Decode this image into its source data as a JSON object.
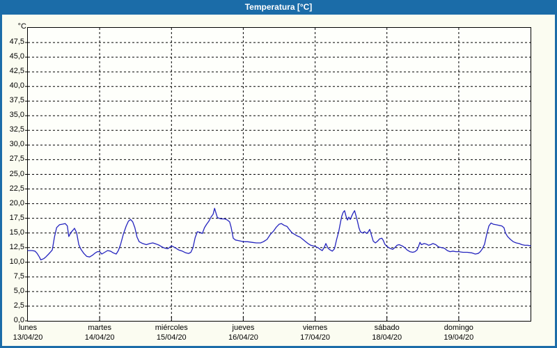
{
  "title": "Temperatura [°C]",
  "colors": {
    "frame": "#1b6ca8",
    "title_text": "#ffffff",
    "background": "#fbfcf1",
    "plot_background": "#fefffb",
    "line": "#2323be",
    "grid": "#000000"
  },
  "chart_data": {
    "type": "line",
    "title": "Temperatura [°C]",
    "y_unit": "°C",
    "ylim": [
      0,
      50
    ],
    "y_tick_step": 2.5,
    "x_range_days": [
      0,
      7
    ],
    "grid": "dashed black, horizontal every 2.5 °C, vertical at day boundaries",
    "legend": "none",
    "y_ticks": [
      {
        "v": 47.5,
        "label": "47,5"
      },
      {
        "v": 45.0,
        "label": "45,0"
      },
      {
        "v": 42.5,
        "label": "42,5"
      },
      {
        "v": 40.0,
        "label": "40,0"
      },
      {
        "v": 37.5,
        "label": "37,5"
      },
      {
        "v": 35.0,
        "label": "35,0"
      },
      {
        "v": 32.5,
        "label": "32,5"
      },
      {
        "v": 30.0,
        "label": "30,0"
      },
      {
        "v": 27.5,
        "label": "27,5"
      },
      {
        "v": 25.0,
        "label": "25,0"
      },
      {
        "v": 22.5,
        "label": "22,5"
      },
      {
        "v": 20.0,
        "label": "20,0"
      },
      {
        "v": 17.5,
        "label": "17,5"
      },
      {
        "v": 15.0,
        "label": "15,0"
      },
      {
        "v": 12.5,
        "label": "12,5"
      },
      {
        "v": 10.0,
        "label": "10,0"
      },
      {
        "v": 7.5,
        "label": "7,5"
      },
      {
        "v": 5.0,
        "label": "5,0"
      },
      {
        "v": 2.5,
        "label": "2,5"
      },
      {
        "v": 0.0,
        "label": "0,0"
      }
    ],
    "x_days": [
      {
        "name": "lunes",
        "date": "13/04/20"
      },
      {
        "name": "martes",
        "date": "14/04/20"
      },
      {
        "name": "miércoles",
        "date": "15/04/20"
      },
      {
        "name": "jueves",
        "date": "16/04/20"
      },
      {
        "name": "viernes",
        "date": "17/04/20"
      },
      {
        "name": "sábado",
        "date": "18/04/20"
      },
      {
        "name": "domingo",
        "date": "19/04/20"
      }
    ],
    "series": [
      {
        "name": "Temperatura",
        "color": "#2323be",
        "points": [
          [
            0.0,
            12.0
          ],
          [
            0.06,
            12.0
          ],
          [
            0.1,
            11.9
          ],
          [
            0.13,
            11.5
          ],
          [
            0.16,
            10.9
          ],
          [
            0.18,
            10.4
          ],
          [
            0.22,
            10.6
          ],
          [
            0.25,
            10.9
          ],
          [
            0.29,
            11.4
          ],
          [
            0.32,
            11.8
          ],
          [
            0.34,
            12.1
          ],
          [
            0.37,
            14.3
          ],
          [
            0.4,
            15.9
          ],
          [
            0.44,
            16.4
          ],
          [
            0.48,
            16.5
          ],
          [
            0.52,
            16.6
          ],
          [
            0.55,
            16.2
          ],
          [
            0.57,
            14.4
          ],
          [
            0.6,
            15.1
          ],
          [
            0.63,
            15.5
          ],
          [
            0.65,
            15.8
          ],
          [
            0.68,
            15.0
          ],
          [
            0.71,
            13.0
          ],
          [
            0.74,
            12.2
          ],
          [
            0.78,
            11.5
          ],
          [
            0.82,
            11.0
          ],
          [
            0.86,
            10.9
          ],
          [
            0.9,
            11.2
          ],
          [
            0.94,
            11.6
          ],
          [
            0.97,
            11.8
          ],
          [
            1.0,
            11.8
          ],
          [
            1.03,
            11.4
          ],
          [
            1.07,
            11.7
          ],
          [
            1.11,
            12.0
          ],
          [
            1.15,
            11.9
          ],
          [
            1.19,
            11.6
          ],
          [
            1.23,
            11.4
          ],
          [
            1.26,
            12.0
          ],
          [
            1.29,
            13.0
          ],
          [
            1.33,
            14.8
          ],
          [
            1.37,
            16.2
          ],
          [
            1.4,
            17.0
          ],
          [
            1.43,
            17.3
          ],
          [
            1.46,
            16.9
          ],
          [
            1.49,
            15.9
          ],
          [
            1.52,
            14.3
          ],
          [
            1.55,
            13.5
          ],
          [
            1.6,
            13.2
          ],
          [
            1.65,
            13.0
          ],
          [
            1.7,
            13.2
          ],
          [
            1.74,
            13.3
          ],
          [
            1.79,
            13.1
          ],
          [
            1.83,
            12.9
          ],
          [
            1.87,
            12.6
          ],
          [
            1.91,
            12.4
          ],
          [
            1.95,
            12.3
          ],
          [
            2.0,
            12.8
          ],
          [
            2.05,
            12.5
          ],
          [
            2.1,
            12.1
          ],
          [
            2.15,
            11.9
          ],
          [
            2.2,
            11.6
          ],
          [
            2.24,
            11.5
          ],
          [
            2.27,
            11.7
          ],
          [
            2.3,
            12.5
          ],
          [
            2.33,
            14.2
          ],
          [
            2.36,
            15.2
          ],
          [
            2.4,
            15.1
          ],
          [
            2.43,
            14.9
          ],
          [
            2.46,
            15.9
          ],
          [
            2.49,
            16.5
          ],
          [
            2.52,
            17.0
          ],
          [
            2.55,
            17.7
          ],
          [
            2.58,
            18.2
          ],
          [
            2.6,
            19.2
          ],
          [
            2.62,
            18.4
          ],
          [
            2.64,
            17.6
          ],
          [
            2.69,
            17.4
          ],
          [
            2.74,
            17.4
          ],
          [
            2.78,
            17.2
          ],
          [
            2.81,
            16.9
          ],
          [
            2.83,
            16.0
          ],
          [
            2.86,
            14.1
          ],
          [
            2.89,
            13.8
          ],
          [
            2.93,
            13.7
          ],
          [
            2.97,
            13.6
          ],
          [
            3.0,
            13.5
          ],
          [
            3.06,
            13.5
          ],
          [
            3.12,
            13.4
          ],
          [
            3.18,
            13.3
          ],
          [
            3.24,
            13.3
          ],
          [
            3.28,
            13.5
          ],
          [
            3.33,
            13.9
          ],
          [
            3.38,
            14.8
          ],
          [
            3.42,
            15.3
          ],
          [
            3.46,
            16.0
          ],
          [
            3.5,
            16.5
          ],
          [
            3.53,
            16.6
          ],
          [
            3.57,
            16.3
          ],
          [
            3.61,
            16.1
          ],
          [
            3.64,
            15.6
          ],
          [
            3.68,
            15.0
          ],
          [
            3.71,
            14.8
          ],
          [
            3.75,
            14.5
          ],
          [
            3.79,
            14.3
          ],
          [
            3.82,
            14.0
          ],
          [
            3.86,
            13.6
          ],
          [
            3.9,
            13.2
          ],
          [
            3.94,
            12.9
          ],
          [
            3.97,
            12.8
          ],
          [
            4.0,
            12.7
          ],
          [
            4.04,
            12.5
          ],
          [
            4.07,
            12.2
          ],
          [
            4.1,
            12.0
          ],
          [
            4.13,
            12.6
          ],
          [
            4.15,
            13.2
          ],
          [
            4.18,
            12.4
          ],
          [
            4.21,
            12.1
          ],
          [
            4.24,
            11.9
          ],
          [
            4.27,
            12.3
          ],
          [
            4.3,
            13.9
          ],
          [
            4.33,
            15.3
          ],
          [
            4.35,
            16.6
          ],
          [
            4.37,
            17.8
          ],
          [
            4.39,
            18.5
          ],
          [
            4.41,
            18.8
          ],
          [
            4.43,
            17.9
          ],
          [
            4.45,
            17.2
          ],
          [
            4.47,
            17.7
          ],
          [
            4.49,
            17.3
          ],
          [
            4.51,
            17.9
          ],
          [
            4.53,
            18.4
          ],
          [
            4.55,
            18.8
          ],
          [
            4.57,
            17.9
          ],
          [
            4.59,
            17.0
          ],
          [
            4.61,
            15.9
          ],
          [
            4.63,
            15.2
          ],
          [
            4.66,
            15.0
          ],
          [
            4.69,
            15.2
          ],
          [
            4.72,
            14.9
          ],
          [
            4.74,
            15.2
          ],
          [
            4.76,
            15.6
          ],
          [
            4.79,
            14.4
          ],
          [
            4.81,
            13.6
          ],
          [
            4.84,
            13.3
          ],
          [
            4.87,
            13.6
          ],
          [
            4.9,
            14.0
          ],
          [
            4.93,
            14.1
          ],
          [
            4.95,
            13.7
          ],
          [
            4.97,
            13.1
          ],
          [
            5.0,
            12.7
          ],
          [
            5.04,
            12.4
          ],
          [
            5.08,
            12.2
          ],
          [
            5.11,
            12.5
          ],
          [
            5.14,
            12.9
          ],
          [
            5.17,
            13.0
          ],
          [
            5.21,
            12.8
          ],
          [
            5.25,
            12.5
          ],
          [
            5.28,
            12.1
          ],
          [
            5.32,
            11.8
          ],
          [
            5.36,
            11.7
          ],
          [
            5.39,
            11.8
          ],
          [
            5.42,
            12.1
          ],
          [
            5.44,
            12.7
          ],
          [
            5.46,
            13.4
          ],
          [
            5.48,
            13.0
          ],
          [
            5.52,
            13.2
          ],
          [
            5.55,
            13.1
          ],
          [
            5.58,
            12.9
          ],
          [
            5.61,
            13.0
          ],
          [
            5.64,
            13.2
          ],
          [
            5.68,
            13.0
          ],
          [
            5.72,
            12.6
          ],
          [
            5.76,
            12.5
          ],
          [
            5.8,
            12.4
          ],
          [
            5.84,
            12.0
          ],
          [
            5.88,
            11.8
          ],
          [
            5.92,
            11.9
          ],
          [
            5.96,
            11.8
          ],
          [
            6.0,
            11.8
          ],
          [
            6.06,
            11.7
          ],
          [
            6.12,
            11.7
          ],
          [
            6.18,
            11.6
          ],
          [
            6.23,
            11.4
          ],
          [
            6.27,
            11.5
          ],
          [
            6.3,
            11.8
          ],
          [
            6.33,
            12.3
          ],
          [
            6.36,
            13.1
          ],
          [
            6.39,
            14.8
          ],
          [
            6.42,
            16.2
          ],
          [
            6.45,
            16.7
          ],
          [
            6.48,
            16.5
          ],
          [
            6.52,
            16.4
          ],
          [
            6.56,
            16.3
          ],
          [
            6.6,
            16.2
          ],
          [
            6.63,
            15.9
          ],
          [
            6.65,
            15.0
          ],
          [
            6.68,
            14.4
          ],
          [
            6.72,
            13.9
          ],
          [
            6.76,
            13.5
          ],
          [
            6.8,
            13.3
          ],
          [
            6.84,
            13.2
          ],
          [
            6.88,
            13.0
          ],
          [
            6.92,
            12.9
          ],
          [
            6.96,
            12.9
          ],
          [
            7.0,
            12.8
          ]
        ]
      }
    ]
  }
}
